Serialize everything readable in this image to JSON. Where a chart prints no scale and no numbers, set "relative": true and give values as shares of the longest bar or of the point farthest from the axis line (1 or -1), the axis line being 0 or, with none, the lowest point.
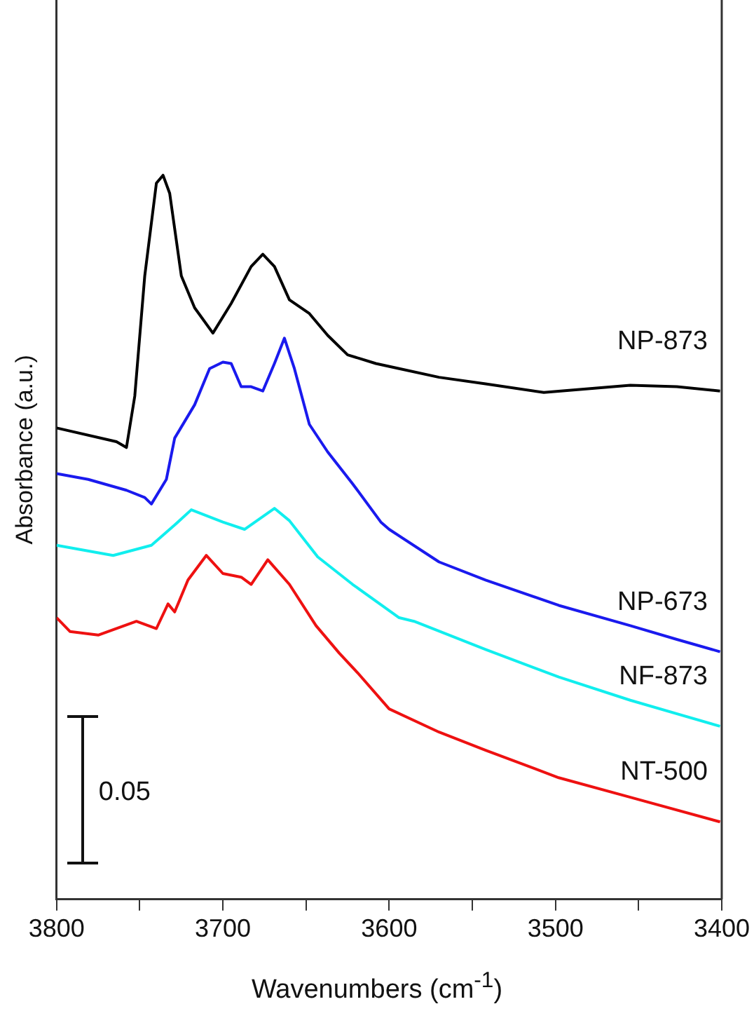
{
  "chart_data": {
    "type": "line",
    "relative": true,
    "xlabel": "Wavenumbers (cm$^{-1}$)",
    "ylabel": "Absorbance (a.u.)",
    "xlim": [
      3800,
      3400
    ],
    "xticks": [
      3800,
      {
        "value": 3750,
        "label": null
      },
      3700,
      {
        "value": 3650,
        "label": null
      },
      3600,
      {
        "value": 3550,
        "label": null
      },
      3500,
      {
        "value": 3450,
        "label": null
      },
      3400
    ],
    "grid": false,
    "legend": false,
    "marker": "none",
    "line_style": "solid",
    "annotations": [
      "0.05"
    ],
    "series": [
      {
        "name": "NP-873",
        "color": "#000000",
        "x": [
          3800,
          3764,
          3758,
          3753,
          3747,
          3740,
          3736,
          3732,
          3725,
          3717,
          3706,
          3695,
          3683,
          3676,
          3669,
          3660,
          3648,
          3637,
          3625,
          3608,
          3594,
          3570,
          3542,
          3507,
          3455,
          3427,
          3401
        ],
        "values": [
          0.651,
          0.632,
          0.624,
          0.695,
          0.861,
          0.989,
          1,
          0.975,
          0.861,
          0.817,
          0.782,
          0.823,
          0.874,
          0.891,
          0.874,
          0.828,
          0.809,
          0.779,
          0.752,
          0.74,
          0.733,
          0.721,
          0.712,
          0.7,
          0.71,
          0.708,
          0.702
        ]
      },
      {
        "name": "NP-673",
        "color": "#1a1aee",
        "x": [
          3800,
          3781,
          3758,
          3747,
          3743,
          3734,
          3729,
          3717,
          3708,
          3700,
          3695,
          3689,
          3683,
          3676,
          3669,
          3663,
          3657,
          3648,
          3637,
          3622,
          3605,
          3600,
          3570,
          3542,
          3498,
          3455,
          3427,
          3401
        ],
        "values": [
          0.588,
          0.58,
          0.565,
          0.555,
          0.546,
          0.58,
          0.637,
          0.683,
          0.733,
          0.742,
          0.74,
          0.708,
          0.708,
          0.702,
          0.74,
          0.775,
          0.733,
          0.656,
          0.618,
          0.574,
          0.521,
          0.511,
          0.466,
          0.441,
          0.406,
          0.378,
          0.359,
          0.342
        ]
      },
      {
        "name": "NF-873",
        "color": "#11eeee",
        "x": [
          3800,
          3766,
          3743,
          3729,
          3719,
          3700,
          3687,
          3669,
          3660,
          3643,
          3622,
          3594,
          3585,
          3542,
          3498,
          3455,
          3401
        ],
        "values": [
          0.489,
          0.475,
          0.489,
          0.517,
          0.538,
          0.521,
          0.511,
          0.54,
          0.523,
          0.473,
          0.435,
          0.389,
          0.384,
          0.345,
          0.307,
          0.275,
          0.239
        ]
      },
      {
        "name": "NT-500",
        "color": "#ee1111",
        "x": [
          3800,
          3792,
          3775,
          3752,
          3740,
          3733,
          3729,
          3721,
          3710,
          3700,
          3689,
          3683,
          3673,
          3660,
          3644,
          3630,
          3619,
          3600,
          3570,
          3542,
          3498,
          3455,
          3401
        ],
        "values": [
          0.389,
          0.37,
          0.365,
          0.384,
          0.374,
          0.408,
          0.397,
          0.441,
          0.475,
          0.45,
          0.445,
          0.435,
          0.469,
          0.435,
          0.378,
          0.34,
          0.313,
          0.263,
          0.231,
          0.206,
          0.168,
          0.141,
          0.107
        ]
      }
    ]
  }
}
